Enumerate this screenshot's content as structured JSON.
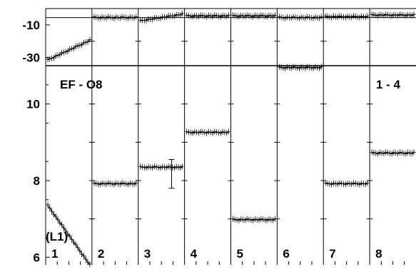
{
  "chart_data": {
    "type": "scatter",
    "upper_panel": {
      "yticks": [
        -10,
        -30
      ],
      "ylim": [
        -35,
        0
      ],
      "reference_y": -5.5
    },
    "lower_panel": {
      "yticks": [
        10,
        8,
        6
      ],
      "ylim": [
        5.8,
        11.0
      ],
      "label_left": "EF - O8",
      "label_right": "1 - 4",
      "axis_note": "(L1)"
    },
    "panels": [
      {
        "label": "1",
        "upper_start": -31.5,
        "upper_end": -19.5,
        "lower_start": 7.35,
        "lower_end": 5.8
      },
      {
        "label": "2",
        "upper_level": -5.5,
        "lower_level": 7.92
      },
      {
        "label": "3",
        "upper_start": -7.5,
        "upper_end": -3.5,
        "lower_level": 8.35,
        "lower_spike_hi": 8.55,
        "lower_spike_lo": 7.8
      },
      {
        "label": "4",
        "upper_level": -4.5,
        "lower_level": 9.26
      },
      {
        "label": "5",
        "upper_level": -4.5,
        "lower_level": 6.98
      },
      {
        "label": "6",
        "upper_level": -5.5,
        "lower_level": 10.95
      },
      {
        "label": "7",
        "upper_level": -5.0,
        "lower_level": 7.92
      },
      {
        "label": "8",
        "upper_level": -4.0,
        "lower_level": 8.72
      }
    ]
  }
}
